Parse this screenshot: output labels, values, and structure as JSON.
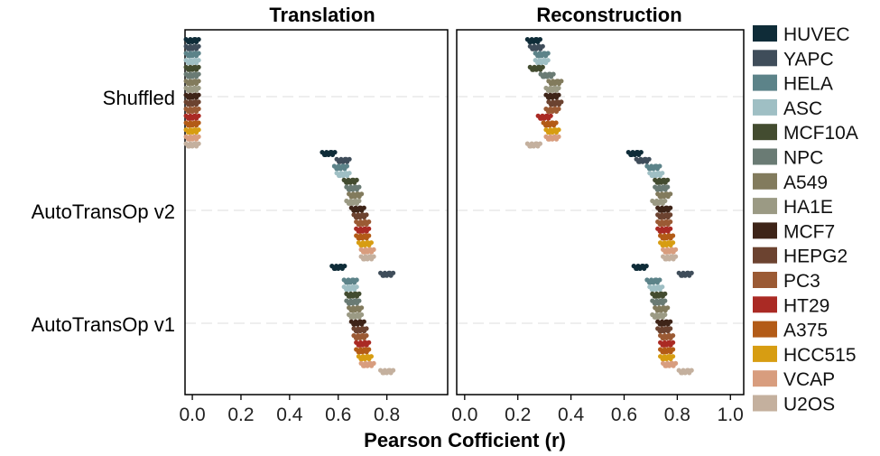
{
  "chart_data": {
    "type": "scatter",
    "subtype": "jittered-strip",
    "xlabel": "Pearson Cofficient (r)",
    "groups": [
      "Shuffled",
      "AutoTransOp v2",
      "AutoTransOp v1"
    ],
    "xlim": [
      -0.03,
      1.05
    ],
    "xticks": [
      "0.0",
      "0.2",
      "0.4",
      "0.6",
      "0.8",
      "1.0"
    ],
    "grid": "horizontal dashed at group centers",
    "legend_position": "right",
    "panels": [
      {
        "title": "Translation",
        "series": {
          "Shuffled": [
            0.0,
            0.0,
            0.0,
            0.0,
            0.0,
            0.0,
            0.0,
            0.0,
            0.0,
            0.0,
            0.0,
            0.0,
            0.0,
            0.0,
            0.0,
            0.0
          ],
          "AutoTransOp v2": [
            0.56,
            0.62,
            0.61,
            0.62,
            0.65,
            0.66,
            0.67,
            0.66,
            0.68,
            0.69,
            0.7,
            0.7,
            0.7,
            0.71,
            0.72,
            0.72
          ],
          "AutoTransOp v1": [
            0.6,
            0.8,
            0.65,
            0.65,
            0.66,
            0.66,
            0.67,
            0.67,
            0.68,
            0.69,
            0.69,
            0.7,
            0.7,
            0.71,
            0.72,
            0.8
          ]
        }
      },
      {
        "title": "Reconstruction",
        "series": {
          "Shuffled": [
            0.26,
            0.27,
            0.29,
            0.29,
            0.27,
            0.31,
            0.34,
            0.33,
            0.33,
            0.34,
            0.33,
            0.3,
            0.32,
            0.33,
            0.33,
            0.26
          ],
          "AutoTransOp v2": [
            0.64,
            0.67,
            0.71,
            0.72,
            0.74,
            0.74,
            0.75,
            0.73,
            0.75,
            0.75,
            0.75,
            0.75,
            0.76,
            0.76,
            0.77,
            0.77
          ],
          "AutoTransOp v1": [
            0.66,
            0.83,
            0.71,
            0.72,
            0.73,
            0.73,
            0.74,
            0.73,
            0.75,
            0.75,
            0.76,
            0.76,
            0.76,
            0.76,
            0.77,
            0.83
          ]
        }
      }
    ],
    "legend": [
      {
        "name": "HUVEC",
        "color": "#0f2c38"
      },
      {
        "name": "YAPC",
        "color": "#3f4d5a"
      },
      {
        "name": "HELA",
        "color": "#5c8389"
      },
      {
        "name": "ASC",
        "color": "#9fbfc4"
      },
      {
        "name": "MCF10A",
        "color": "#434c30"
      },
      {
        "name": "NPC",
        "color": "#6a7b74"
      },
      {
        "name": "A549",
        "color": "#827b5d"
      },
      {
        "name": "HA1E",
        "color": "#9b9a84"
      },
      {
        "name": "MCF7",
        "color": "#3e2418"
      },
      {
        "name": "HEPG2",
        "color": "#6c4330"
      },
      {
        "name": "PC3",
        "color": "#9b5a34"
      },
      {
        "name": "HT29",
        "color": "#aa2a24"
      },
      {
        "name": "A375",
        "color": "#b35b17"
      },
      {
        "name": "HCC515",
        "color": "#d79d12"
      },
      {
        "name": "VCAP",
        "color": "#d89d7e"
      },
      {
        "name": "U2OS",
        "color": "#c4b09e"
      }
    ]
  }
}
